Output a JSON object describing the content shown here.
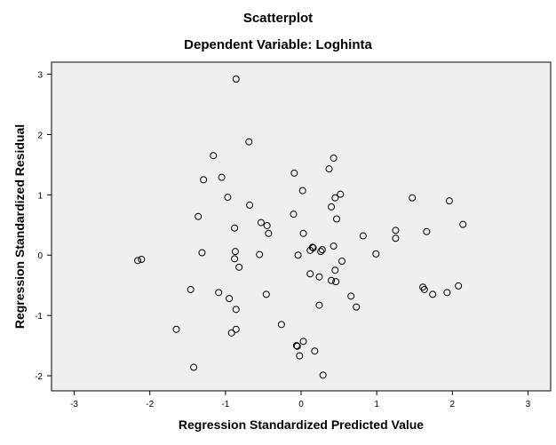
{
  "chart_data": {
    "type": "scatter",
    "title": "Scatterplot",
    "subtitle": "Dependent Variable: Loghinta",
    "xlabel": "Regression Standardized Predicted Value",
    "ylabel": "Regression Standardized Residual",
    "xlim": [
      -3.3,
      3.3
    ],
    "ylim": [
      -2.25,
      3.2
    ],
    "xticks": [
      -3,
      -2,
      -1,
      0,
      1,
      2,
      3
    ],
    "yticks": [
      -2,
      -1,
      0,
      1,
      2,
      3
    ],
    "xtick_labels": [
      "-3",
      "-2",
      "-1",
      "0",
      "1",
      "2",
      "3"
    ],
    "ytick_labels": [
      "-2",
      "-1",
      "0",
      "1",
      "2",
      "3"
    ],
    "grid": false,
    "plot_background": "#efefef",
    "marker": "open-circle",
    "points": [
      {
        "x": -0.86,
        "y": 2.92
      },
      {
        "x": -0.69,
        "y": 1.88
      },
      {
        "x": -1.16,
        "y": 1.65
      },
      {
        "x": 0.43,
        "y": 1.61
      },
      {
        "x": 0.37,
        "y": 1.43
      },
      {
        "x": -0.09,
        "y": 1.36
      },
      {
        "x": -1.05,
        "y": 1.29
      },
      {
        "x": -1.29,
        "y": 1.25
      },
      {
        "x": 0.02,
        "y": 1.07
      },
      {
        "x": 0.52,
        "y": 1.01
      },
      {
        "x": -0.97,
        "y": 0.96
      },
      {
        "x": 0.45,
        "y": 0.95
      },
      {
        "x": 1.47,
        "y": 0.95
      },
      {
        "x": 1.96,
        "y": 0.9
      },
      {
        "x": -0.68,
        "y": 0.83
      },
      {
        "x": 0.4,
        "y": 0.8
      },
      {
        "x": -0.1,
        "y": 0.68
      },
      {
        "x": -1.36,
        "y": 0.64
      },
      {
        "x": 0.47,
        "y": 0.6
      },
      {
        "x": -0.53,
        "y": 0.54
      },
      {
        "x": -0.45,
        "y": 0.49
      },
      {
        "x": -0.88,
        "y": 0.45
      },
      {
        "x": 2.14,
        "y": 0.51
      },
      {
        "x": 1.25,
        "y": 0.41
      },
      {
        "x": 1.66,
        "y": 0.39
      },
      {
        "x": -0.43,
        "y": 0.36
      },
      {
        "x": 0.03,
        "y": 0.36
      },
      {
        "x": 0.82,
        "y": 0.32
      },
      {
        "x": 1.25,
        "y": 0.28
      },
      {
        "x": 0.43,
        "y": 0.15
      },
      {
        "x": 0.15,
        "y": 0.13
      },
      {
        "x": 0.16,
        "y": 0.12
      },
      {
        "x": 0.12,
        "y": 0.08
      },
      {
        "x": 0.28,
        "y": 0.09
      },
      {
        "x": 0.26,
        "y": 0.06
      },
      {
        "x": -0.87,
        "y": 0.06
      },
      {
        "x": -1.31,
        "y": 0.04
      },
      {
        "x": 0.99,
        "y": 0.02
      },
      {
        "x": -0.55,
        "y": 0.01
      },
      {
        "x": -0.04,
        "y": 0.0
      },
      {
        "x": -0.88,
        "y": -0.06
      },
      {
        "x": -2.11,
        "y": -0.07
      },
      {
        "x": -2.16,
        "y": -0.09
      },
      {
        "x": 0.54,
        "y": -0.1
      },
      {
        "x": -0.82,
        "y": -0.2
      },
      {
        "x": 0.45,
        "y": -0.25
      },
      {
        "x": 0.12,
        "y": -0.31
      },
      {
        "x": 0.24,
        "y": -0.36
      },
      {
        "x": 0.4,
        "y": -0.42
      },
      {
        "x": 0.46,
        "y": -0.44
      },
      {
        "x": 2.08,
        "y": -0.51
      },
      {
        "x": 1.61,
        "y": -0.53
      },
      {
        "x": 1.63,
        "y": -0.57
      },
      {
        "x": -1.46,
        "y": -0.57
      },
      {
        "x": -1.09,
        "y": -0.62
      },
      {
        "x": 1.93,
        "y": -0.62
      },
      {
        "x": -0.46,
        "y": -0.65
      },
      {
        "x": 1.74,
        "y": -0.65
      },
      {
        "x": 0.66,
        "y": -0.68
      },
      {
        "x": -0.95,
        "y": -0.72
      },
      {
        "x": 0.24,
        "y": -0.83
      },
      {
        "x": 0.73,
        "y": -0.86
      },
      {
        "x": -0.86,
        "y": -0.9
      },
      {
        "x": -0.26,
        "y": -1.15
      },
      {
        "x": -1.65,
        "y": -1.23
      },
      {
        "x": -0.86,
        "y": -1.23
      },
      {
        "x": -0.92,
        "y": -1.29
      },
      {
        "x": 0.03,
        "y": -1.43
      },
      {
        "x": -0.06,
        "y": -1.5
      },
      {
        "x": -0.05,
        "y": -1.51
      },
      {
        "x": 0.18,
        "y": -1.59
      },
      {
        "x": -0.02,
        "y": -1.67
      },
      {
        "x": -1.42,
        "y": -1.86
      },
      {
        "x": 0.29,
        "y": -1.99
      }
    ]
  }
}
